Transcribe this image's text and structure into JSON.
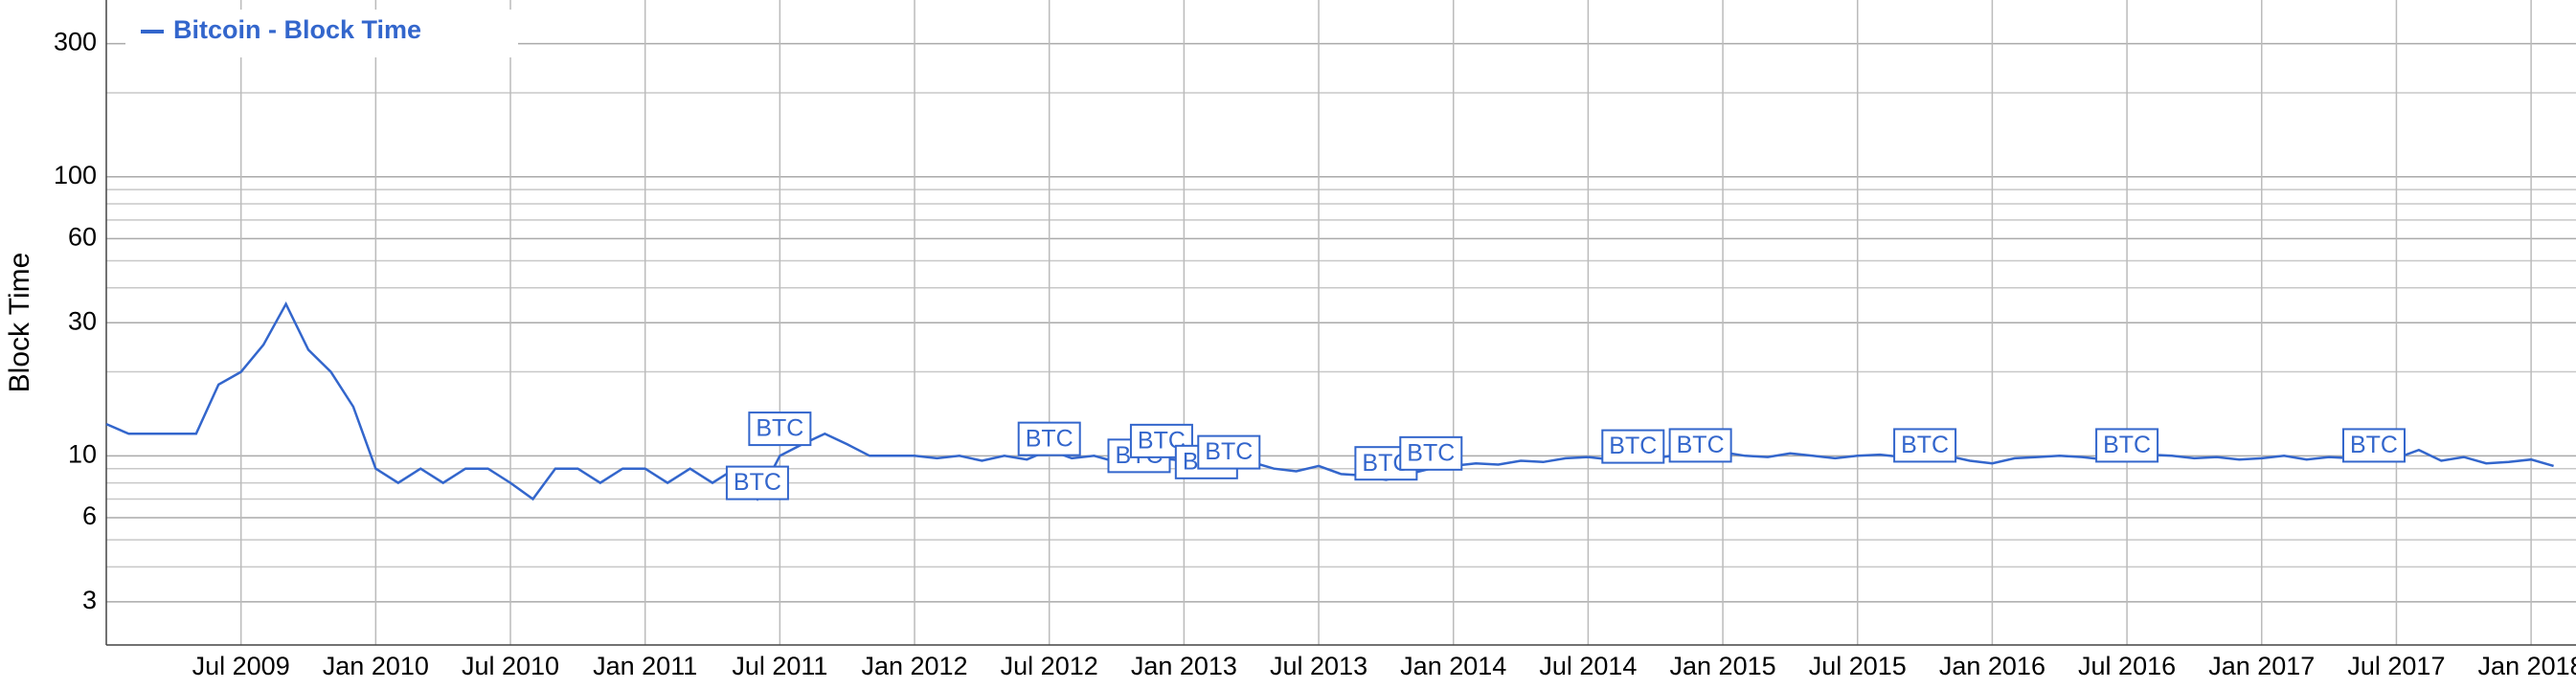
{
  "chart_data": {
    "type": "line",
    "y_label": "Block Time",
    "log_y": true,
    "grid": true,
    "legend": "top-left",
    "xlim": [
      "2009-01",
      "2018-03"
    ],
    "xticks": [
      {
        "value": "2009-07",
        "label": "Jul 2009"
      },
      {
        "value": "2010-01",
        "label": "Jan 2010"
      },
      {
        "value": "2010-07",
        "label": "Jul 2010"
      },
      {
        "value": "2011-01",
        "label": "Jan 2011"
      },
      {
        "value": "2011-07",
        "label": "Jul 2011"
      },
      {
        "value": "2012-01",
        "label": "Jan 2012"
      },
      {
        "value": "2012-07",
        "label": "Jul 2012"
      },
      {
        "value": "2013-01",
        "label": "Jan 2013"
      },
      {
        "value": "2013-07",
        "label": "Jul 2013"
      },
      {
        "value": "2014-01",
        "label": "Jan 2014"
      },
      {
        "value": "2014-07",
        "label": "Jul 2014"
      },
      {
        "value": "2015-01",
        "label": "Jan 2015"
      },
      {
        "value": "2015-07",
        "label": "Jul 2015"
      },
      {
        "value": "2016-01",
        "label": "Jan 2016"
      },
      {
        "value": "2016-07",
        "label": "Jul 2016"
      },
      {
        "value": "2017-01",
        "label": "Jan 2017"
      },
      {
        "value": "2017-07",
        "label": "Jul 2017"
      },
      {
        "value": "2018-01",
        "label": "Jan 2018"
      }
    ],
    "ylim": [
      2.1,
      430
    ],
    "yticks": [
      3,
      6,
      10,
      30,
      60,
      100,
      300
    ],
    "y_minor_ticks": [
      4,
      5,
      7,
      8,
      9,
      20,
      40,
      50,
      70,
      80,
      90,
      200
    ],
    "x": [
      "2009-01",
      "2009-02",
      "2009-03",
      "2009-04",
      "2009-05",
      "2009-06",
      "2009-07",
      "2009-08",
      "2009-09",
      "2009-10",
      "2009-11",
      "2009-12",
      "2010-01",
      "2010-02",
      "2010-03",
      "2010-04",
      "2010-05",
      "2010-06",
      "2010-07",
      "2010-08",
      "2010-09",
      "2010-10",
      "2010-11",
      "2010-12",
      "2011-01",
      "2011-02",
      "2011-03",
      "2011-04",
      "2011-05",
      "2011-06",
      "2011-07",
      "2011-08",
      "2011-09",
      "2011-10",
      "2011-11",
      "2011-12",
      "2012-01",
      "2012-02",
      "2012-03",
      "2012-04",
      "2012-05",
      "2012-06",
      "2012-07",
      "2012-08",
      "2012-09",
      "2012-10",
      "2012-11",
      "2012-12",
      "2013-01",
      "2013-02",
      "2013-03",
      "2013-04",
      "2013-05",
      "2013-06",
      "2013-07",
      "2013-08",
      "2013-09",
      "2013-10",
      "2013-11",
      "2013-12",
      "2014-01",
      "2014-02",
      "2014-03",
      "2014-04",
      "2014-05",
      "2014-06",
      "2014-07",
      "2014-08",
      "2014-09",
      "2014-10",
      "2014-11",
      "2014-12",
      "2015-01",
      "2015-02",
      "2015-03",
      "2015-04",
      "2015-05",
      "2015-06",
      "2015-07",
      "2015-08",
      "2015-09",
      "2015-10",
      "2015-11",
      "2015-12",
      "2016-01",
      "2016-02",
      "2016-03",
      "2016-04",
      "2016-05",
      "2016-06",
      "2016-07",
      "2016-08",
      "2016-09",
      "2016-10",
      "2016-11",
      "2016-12",
      "2017-01",
      "2017-02",
      "2017-03",
      "2017-04",
      "2017-05",
      "2017-06",
      "2017-07",
      "2017-08",
      "2017-09",
      "2017-10",
      "2017-11",
      "2017-12",
      "2018-01",
      "2018-02"
    ],
    "series": [
      {
        "name": "Bitcoin - Block Time",
        "color": "#3366cc",
        "values": [
          13,
          12,
          12,
          12,
          12,
          18,
          20,
          25,
          35,
          24,
          20,
          15,
          9,
          8,
          9,
          8,
          9,
          9,
          8,
          7,
          9,
          9,
          8,
          9,
          9,
          8,
          9,
          8,
          9,
          7,
          10,
          11,
          12,
          11,
          10,
          10,
          10,
          9.8,
          10,
          9.6,
          10,
          9.7,
          10.5,
          9.8,
          10,
          9.5,
          10.2,
          9.8,
          9.6,
          9.8,
          9.2,
          9.5,
          9,
          8.8,
          9.2,
          8.6,
          8.5,
          8.2,
          8.6,
          9,
          9.2,
          9.4,
          9.3,
          9.6,
          9.5,
          9.8,
          9.9,
          9.7,
          10,
          9.8,
          10.1,
          10.2,
          10.3,
          10,
          9.9,
          10.2,
          10,
          9.8,
          10,
          10.1,
          9.9,
          9.7,
          10,
          9.6,
          9.4,
          9.8,
          9.9,
          10,
          9.9,
          9.7,
          10.3,
          10.1,
          10,
          9.8,
          9.9,
          9.7,
          9.8,
          10,
          9.7,
          9.9,
          9.8,
          9.6,
          9.8,
          10.5,
          9.6,
          9.9,
          9.4,
          9.5,
          9.7,
          9.2
        ]
      }
    ],
    "annotations": [
      {
        "x": "2011-06",
        "y": 8,
        "label": "BTC"
      },
      {
        "x": "2011-07",
        "y": 12.5,
        "label": "BTC"
      },
      {
        "x": "2012-07",
        "y": 11.5,
        "label": "BTC"
      },
      {
        "x": "2012-11",
        "y": 10,
        "label": "BTC"
      },
      {
        "x": "2012-12",
        "y": 11.3,
        "label": "BTC"
      },
      {
        "x": "2013-02",
        "y": 9.5,
        "label": "BTC"
      },
      {
        "x": "2013-03",
        "y": 10.3,
        "label": "BTC"
      },
      {
        "x": "2013-10",
        "y": 9.4,
        "label": "BTC"
      },
      {
        "x": "2013-12",
        "y": 10.2,
        "label": "BTC"
      },
      {
        "x": "2014-09",
        "y": 10.8,
        "label": "BTC"
      },
      {
        "x": "2014-12",
        "y": 10.9,
        "label": "BTC"
      },
      {
        "x": "2015-10",
        "y": 10.9,
        "label": "BTC"
      },
      {
        "x": "2016-07",
        "y": 10.9,
        "label": "BTC"
      },
      {
        "x": "2017-06",
        "y": 10.9,
        "label": "BTC"
      }
    ]
  }
}
